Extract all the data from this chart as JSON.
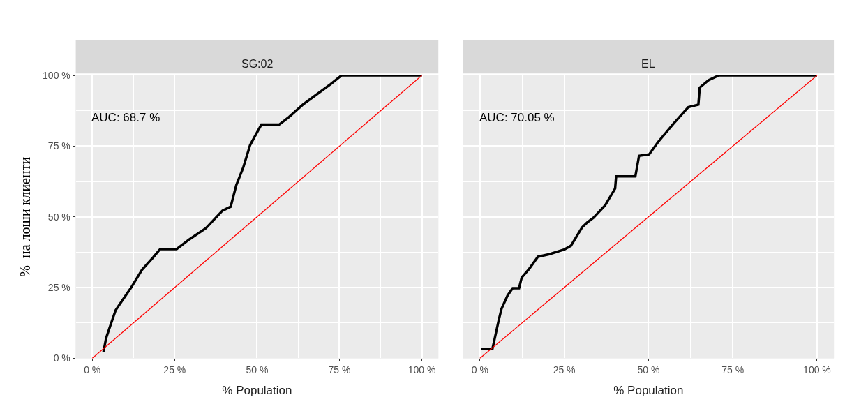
{
  "chart_data": [
    {
      "type": "line",
      "title": "SG:02",
      "xlabel": "% Population",
      "ylabel": "%  на лоши клиенти",
      "annotations": [
        "AUC: 68.7 %"
      ],
      "series": [
        {
          "color": "#000000",
          "x": [
            3.4,
            4.2,
            5.5,
            7.1,
            8.4,
            11.8,
            15.1,
            18.5,
            20.6,
            25.6,
            29.4,
            34.5,
            39.5,
            42.0,
            43.7,
            45.8,
            47.9,
            49.6,
            51.3,
            56.7,
            59.7,
            63.9,
            68.1,
            72.3,
            75.6,
            100
          ],
          "values": [
            2.2,
            7.1,
            11.6,
            17.0,
            19.2,
            25.0,
            31.3,
            35.7,
            38.6,
            38.6,
            42.0,
            46.0,
            52.2,
            53.6,
            61.2,
            67.4,
            75.4,
            79.0,
            82.6,
            82.6,
            85.3,
            89.7,
            93.3,
            96.9,
            100,
            100
          ]
        },
        {
          "color": "#ff0000",
          "x": [
            0,
            100
          ],
          "values": [
            0,
            100
          ]
        }
      ],
      "xlim": [
        -5,
        105
      ],
      "ylim": [
        0,
        100
      ],
      "xticks": [
        {
          "value": 0,
          "label": "0 %"
        },
        {
          "value": 25,
          "label": "25 %"
        },
        {
          "value": 50,
          "label": "50 %"
        },
        {
          "value": 75,
          "label": "75 %"
        },
        {
          "value": 100,
          "label": "100 %"
        }
      ],
      "yticks": [
        {
          "value": 0,
          "label": "0 %"
        },
        {
          "value": 25,
          "label": "25 %"
        },
        {
          "value": 50,
          "label": "50 %"
        },
        {
          "value": 75,
          "label": "75 %"
        },
        {
          "value": 100,
          "label": "100 %"
        }
      ],
      "grid": true
    },
    {
      "type": "line",
      "title": "EL",
      "xlabel": "% Population",
      "annotations": [
        "AUC: 70.05 %"
      ],
      "series": [
        {
          "color": "#000000",
          "x": [
            0.4,
            3.7,
            4.5,
            5.6,
            6.4,
            8.2,
            9.7,
            11.6,
            12.4,
            14.6,
            17.2,
            20.6,
            25.1,
            27.0,
            30.3,
            31.8,
            33.7,
            37.1,
            40.1,
            40.4,
            46.1,
            47.2,
            50.2,
            52.8,
            57.3,
            61.8,
            64.8,
            65.2,
            67.8,
            70.8,
            100
          ],
          "values": [
            3.3,
            3.3,
            7.6,
            13.6,
            17.5,
            22.2,
            24.8,
            24.8,
            28.6,
            31.6,
            35.9,
            36.8,
            38.5,
            39.8,
            46.3,
            48.0,
            49.7,
            54.0,
            60.0,
            64.3,
            64.3,
            71.6,
            72.1,
            76.4,
            82.8,
            88.8,
            89.7,
            95.7,
            98.3,
            100,
            100
          ]
        },
        {
          "color": "#ff0000",
          "x": [
            0,
            100
          ],
          "values": [
            0,
            100
          ]
        }
      ],
      "xlim": [
        -5,
        105
      ],
      "ylim": [
        0,
        100
      ],
      "xticks": [
        {
          "value": 0,
          "label": "0 %"
        },
        {
          "value": 25,
          "label": "25 %"
        },
        {
          "value": 50,
          "label": "50 %"
        },
        {
          "value": 75,
          "label": "75 %"
        },
        {
          "value": 100,
          "label": "100 %"
        }
      ],
      "yticks": [
        0,
        25,
        50,
        75,
        100
      ],
      "grid": true,
      "tick_labels": "x"
    }
  ]
}
